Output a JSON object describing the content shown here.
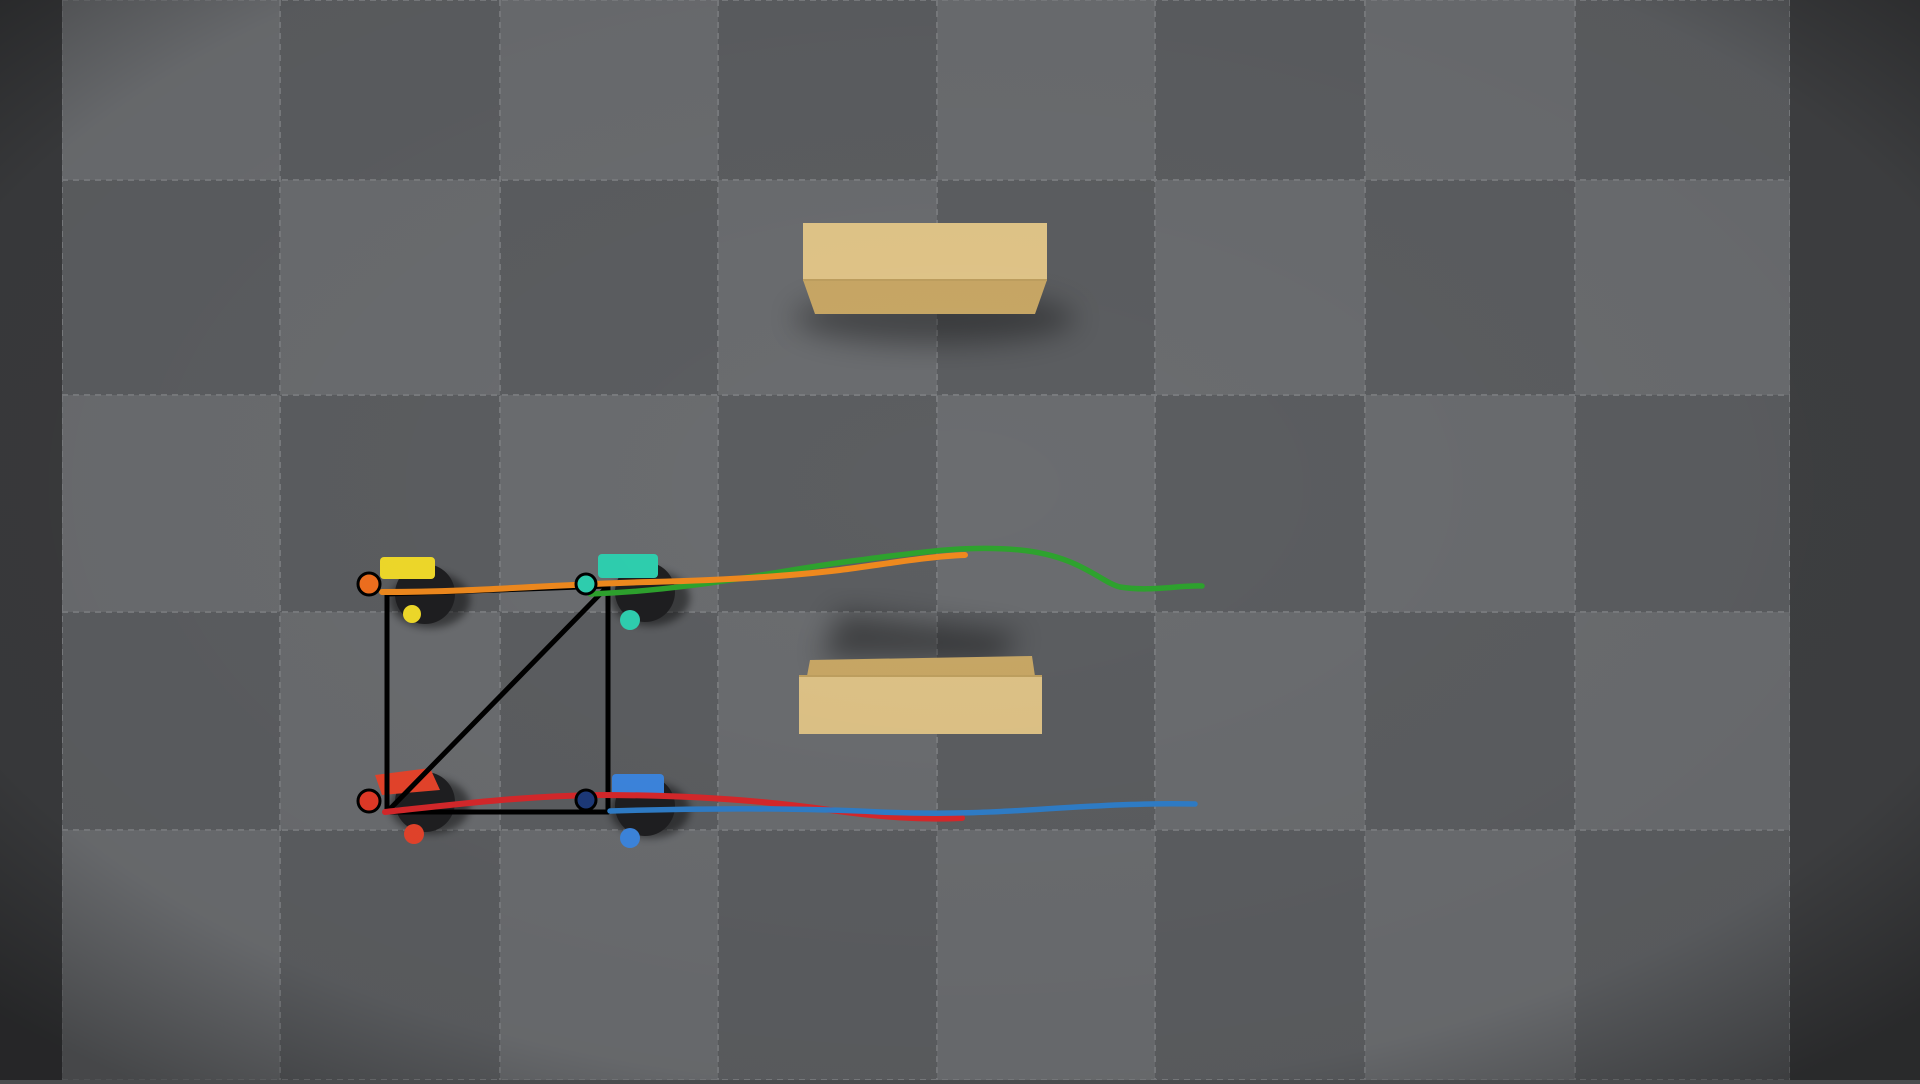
{
  "scene": {
    "description_free": true,
    "robots": [
      {
        "id": "yellow",
        "color": "#f2dc2a",
        "trail_color": "#f08a1e"
      },
      {
        "id": "teal",
        "color": "#2fd0b0",
        "trail_color": "#2ea32e"
      },
      {
        "id": "red",
        "color": "#e8442c",
        "trail_color": "#d8282b"
      },
      {
        "id": "blue",
        "color": "#3d86df",
        "trail_color": "#2f7ec9"
      }
    ],
    "obstacles": [
      "box-top",
      "box-bottom"
    ],
    "colors": {
      "floor_light": "#6b6d70",
      "floor_dark": "#5c5e61",
      "wall": "#333436",
      "box": "#e0c487",
      "box_edge": "#bf9e5a",
      "formation": "#000000",
      "marker_orange": "#f2701f",
      "marker_red": "#e53a27",
      "marker_navy": "#1d3a7a"
    }
  }
}
